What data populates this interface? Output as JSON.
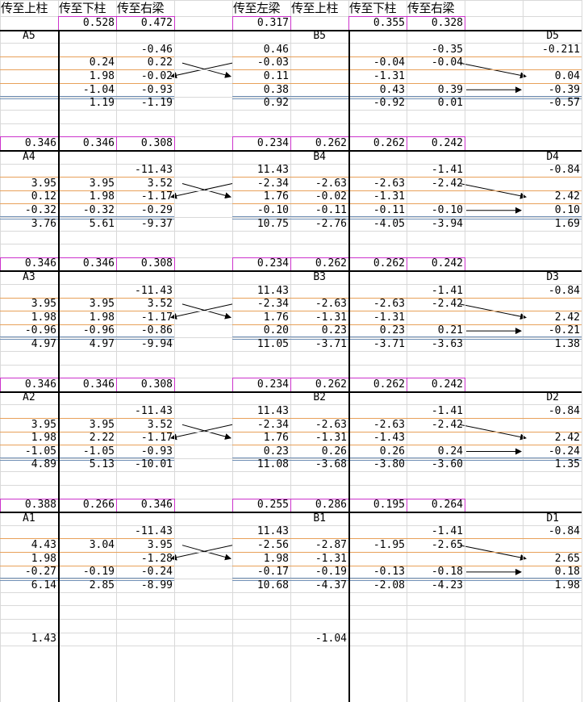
{
  "headers": [
    "传至上柱",
    "传至下柱",
    "传至右梁",
    "",
    "传至左梁",
    "传至上柱",
    "传至下柱",
    "传至右梁",
    "",
    ""
  ],
  "rows": [
    [
      "",
      "0.528",
      "0.472",
      "",
      "0.317",
      "",
      "0.355",
      "0.328",
      "",
      ""
    ],
    [
      "A5",
      "",
      "",
      "",
      "",
      "B5",
      "",
      "",
      "",
      "D5"
    ],
    [
      "",
      "",
      "-0.46",
      "",
      "0.46",
      "",
      "",
      "-0.35",
      "",
      "-0.211"
    ],
    [
      "",
      "0.24",
      "0.22",
      "",
      "-0.03",
      "",
      "-0.04",
      "-0.04",
      "",
      ""
    ],
    [
      "",
      "1.98",
      "-0.02",
      "",
      "0.11",
      "",
      "-1.31",
      "",
      "",
      "0.04"
    ],
    [
      "",
      "-1.04",
      "-0.93",
      "",
      "0.38",
      "",
      "0.43",
      "0.39",
      "",
      "-0.39"
    ],
    [
      "",
      "1.19",
      "-1.19",
      "",
      "0.92",
      "",
      "-0.92",
      "0.01",
      "",
      "-0.57"
    ],
    [
      "",
      "",
      "",
      "",
      "",
      "",
      "",
      "",
      "",
      ""
    ],
    [
      "",
      "",
      "",
      "",
      "",
      "",
      "",
      "",
      "",
      ""
    ],
    [
      "0.346",
      "0.346",
      "0.308",
      "",
      "0.234",
      "0.262",
      "0.262",
      "0.242",
      "",
      ""
    ],
    [
      "A4",
      "",
      "",
      "",
      "",
      "B4",
      "",
      "",
      "",
      "D4"
    ],
    [
      "",
      "",
      "-11.43",
      "",
      "11.43",
      "",
      "",
      "-1.41",
      "",
      "-0.84"
    ],
    [
      "3.95",
      "3.95",
      "3.52",
      "",
      "-2.34",
      "-2.63",
      "-2.63",
      "-2.42",
      "",
      ""
    ],
    [
      "0.12",
      "1.98",
      "-1.17",
      "",
      "1.76",
      "-0.02",
      "-1.31",
      "",
      "",
      "2.42"
    ],
    [
      "-0.32",
      "-0.32",
      "-0.29",
      "",
      "-0.10",
      "-0.11",
      "-0.11",
      "-0.10",
      "",
      "0.10"
    ],
    [
      "3.76",
      "5.61",
      "-9.37",
      "",
      "10.75",
      "-2.76",
      "-4.05",
      "-3.94",
      "",
      "1.69"
    ],
    [
      "",
      "",
      "",
      "",
      "",
      "",
      "",
      "",
      "",
      ""
    ],
    [
      "",
      "",
      "",
      "",
      "",
      "",
      "",
      "",
      "",
      ""
    ],
    [
      "0.346",
      "0.346",
      "0.308",
      "",
      "0.234",
      "0.262",
      "0.262",
      "0.242",
      "",
      ""
    ],
    [
      "A3",
      "",
      "",
      "",
      "",
      "B3",
      "",
      "",
      "",
      "D3"
    ],
    [
      "",
      "",
      "-11.43",
      "",
      "11.43",
      "",
      "",
      "-1.41",
      "",
      "-0.84"
    ],
    [
      "3.95",
      "3.95",
      "3.52",
      "",
      "-2.34",
      "-2.63",
      "-2.63",
      "-2.42",
      "",
      ""
    ],
    [
      "1.98",
      "1.98",
      "-1.17",
      "",
      "1.76",
      "-1.31",
      "-1.31",
      "",
      "",
      "2.42"
    ],
    [
      "-0.96",
      "-0.96",
      "-0.86",
      "",
      "0.20",
      "0.23",
      "0.23",
      "0.21",
      "",
      "-0.21"
    ],
    [
      "4.97",
      "4.97",
      "-9.94",
      "",
      "11.05",
      "-3.71",
      "-3.71",
      "-3.63",
      "",
      "1.38"
    ],
    [
      "",
      "",
      "",
      "",
      "",
      "",
      "",
      "",
      "",
      ""
    ],
    [
      "",
      "",
      "",
      "",
      "",
      "",
      "",
      "",
      "",
      ""
    ],
    [
      "0.346",
      "0.346",
      "0.308",
      "",
      "0.234",
      "0.262",
      "0.262",
      "0.242",
      "",
      ""
    ],
    [
      "A2",
      "",
      "",
      "",
      "",
      "B2",
      "",
      "",
      "",
      "D2"
    ],
    [
      "",
      "",
      "-11.43",
      "",
      "11.43",
      "",
      "",
      "-1.41",
      "",
      "-0.84"
    ],
    [
      "3.95",
      "3.95",
      "3.52",
      "",
      "-2.34",
      "-2.63",
      "-2.63",
      "-2.42",
      "",
      ""
    ],
    [
      "1.98",
      "2.22",
      "-1.17",
      "",
      "1.76",
      "-1.31",
      "-1.43",
      "",
      "",
      "2.42"
    ],
    [
      "-1.05",
      "-1.05",
      "-0.93",
      "",
      "0.23",
      "0.26",
      "0.26",
      "0.24",
      "",
      "-0.24"
    ],
    [
      "4.89",
      "5.13",
      "-10.01",
      "",
      "11.08",
      "-3.68",
      "-3.80",
      "-3.60",
      "",
      "1.35"
    ],
    [
      "",
      "",
      "",
      "",
      "",
      "",
      "",
      "",
      "",
      ""
    ],
    [
      "",
      "",
      "",
      "",
      "",
      "",
      "",
      "",
      "",
      ""
    ],
    [
      "0.388",
      "0.266",
      "0.346",
      "",
      "0.255",
      "0.286",
      "0.195",
      "0.264",
      "",
      ""
    ],
    [
      "A1",
      "",
      "",
      "",
      "",
      "B1",
      "",
      "",
      "",
      "D1"
    ],
    [
      "",
      "",
      "-11.43",
      "",
      "11.43",
      "",
      "",
      "-1.41",
      "",
      "-0.84"
    ],
    [
      "4.43",
      "3.04",
      "3.95",
      "",
      "-2.56",
      "-2.87",
      "-1.95",
      "-2.65",
      "",
      ""
    ],
    [
      "1.98",
      "",
      "-1.28",
      "",
      "1.98",
      "-1.31",
      "",
      "",
      "",
      "2.65"
    ],
    [
      "-0.27",
      "-0.19",
      "-0.24",
      "",
      "-0.17",
      "-0.19",
      "-0.13",
      "-0.18",
      "",
      "0.18"
    ],
    [
      "6.14",
      "2.85",
      "-8.99",
      "",
      "10.68",
      "-4.37",
      "-2.08",
      "-4.23",
      "",
      "1.98"
    ],
    [
      "",
      "",
      "",
      "",
      "",
      "",
      "",
      "",
      "",
      ""
    ],
    [
      "",
      "",
      "",
      "",
      "",
      "",
      "",
      "",
      "",
      ""
    ],
    [
      "",
      "",
      "",
      "",
      "",
      "",
      "",
      "",
      "",
      ""
    ],
    [
      "1.43",
      "",
      "",
      "",
      "",
      "-1.04",
      "",
      "",
      "",
      ""
    ]
  ],
  "colors": {
    "grid": "#d9d9d9",
    "orange_rule": "#e8a15a",
    "double_rule": "#6f8fb5",
    "frame": "#000000",
    "box": "#cc33cc"
  }
}
